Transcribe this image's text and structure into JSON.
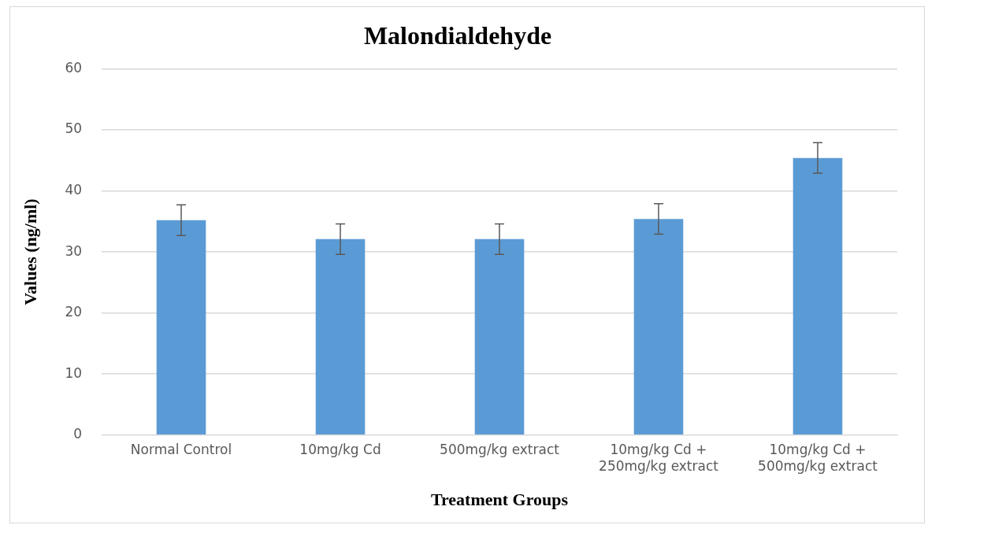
{
  "chart_data": {
    "type": "bar",
    "title": "Malondialdehyde",
    "xlabel": "Treatment Groups",
    "ylabel": "Values (ng/ml)",
    "categories": [
      "Normal Control",
      "10mg/kg Cd",
      "500mg/kg extract",
      "10mg/kg Cd + 250mg/kg extract",
      "10mg/kg Cd + 500mg/kg extract"
    ],
    "values": [
      35.2,
      32.1,
      32.1,
      35.4,
      45.4
    ],
    "errors": [
      2.5,
      2.5,
      2.5,
      2.5,
      2.5
    ],
    "color": "#5b9bd5",
    "ylim": [
      0,
      60
    ],
    "yticks": [
      0,
      10,
      20,
      30,
      40,
      50,
      60
    ],
    "grid": "y",
    "legend": false
  }
}
